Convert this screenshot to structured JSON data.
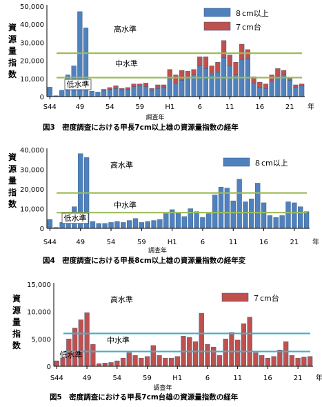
{
  "charts": [
    {
      "type": "bar",
      "stacked": true,
      "ylabel": "資源量指数",
      "xlabel": "調査年",
      "x_unit": "年",
      "caption": "図3　密度調査における甲長7cm以上雄の資源量指数の経年",
      "y_ticks": [
        "0",
        "10,000",
        "20,000",
        "30,000",
        "40,000",
        "50,000"
      ],
      "ylim": [
        0,
        50000
      ],
      "x_ticks": [
        "S44",
        "49",
        "54",
        "59",
        "H1",
        "6",
        "11",
        "16",
        "21"
      ],
      "x_tick_index": [
        0,
        5,
        10,
        15,
        20,
        25,
        30,
        35,
        40
      ],
      "series": [
        {
          "name": "８cm以上",
          "color": "#4f81bd",
          "values": [
            5200,
            500,
            3500,
            12000,
            17000,
            47000,
            38000,
            3000,
            2500,
            3500,
            4000,
            4500,
            3500,
            4000,
            5500,
            6000,
            5500,
            3500,
            4500,
            5000,
            10000,
            7500,
            9000,
            10500,
            12000,
            17000,
            15500,
            12500,
            13500,
            21500,
            17000,
            12000,
            20500,
            21000,
            7500,
            5000,
            4500,
            8500,
            11000,
            12000,
            9000,
            5000,
            6000
          ]
        },
        {
          "name": "７cm台",
          "color": "#c0504d",
          "values": [
            0,
            0,
            0,
            0,
            0,
            0,
            0,
            0,
            0,
            500,
            1000,
            1500,
            1000,
            1000,
            1500,
            1000,
            2000,
            1000,
            2000,
            1500,
            5000,
            4500,
            5500,
            3500,
            3000,
            5000,
            6500,
            4500,
            5500,
            9500,
            6000,
            7000,
            8500,
            5000,
            3500,
            3000,
            2500,
            3500,
            4500,
            2500,
            1000,
            1500,
            1000
          ]
        }
      ],
      "bands": {
        "high_label": "高水準",
        "mid_label": "中水準",
        "low_label": "低水準",
        "high": 24000,
        "mid": 10500
      }
    },
    {
      "type": "bar",
      "ylabel": "資源量指数",
      "xlabel": "調査年",
      "x_unit": "年",
      "caption": "図4　密度調査における甲長8cm以上雄の資源量指数の経年変",
      "y_ticks": [
        "0",
        "10,000",
        "20,000",
        "30,000",
        "40,000"
      ],
      "ylim": [
        0,
        40000
      ],
      "x_ticks": [
        "S44",
        "49",
        "54",
        "59",
        "H1",
        "6",
        "11",
        "16",
        "21"
      ],
      "x_tick_index": [
        0,
        5,
        10,
        15,
        20,
        25,
        30,
        35,
        40
      ],
      "series": [
        {
          "name": "８cm以上",
          "color": "#4f81bd",
          "values": [
            4500,
            500,
            3000,
            8000,
            11000,
            38000,
            36000,
            3500,
            2500,
            2500,
            3000,
            3500,
            3000,
            4000,
            5000,
            3000,
            3500,
            4000,
            4500,
            7500,
            9500,
            8000,
            6000,
            10000,
            8500,
            5500,
            7500,
            17000,
            21000,
            20500,
            14000,
            25000,
            13500,
            15000,
            23000,
            13000,
            6500,
            5500,
            6500,
            13500,
            13000,
            11000,
            8500
          ]
        }
      ],
      "bands": {
        "high_label": "高水準",
        "mid_label": "中水準",
        "low_label": "低水準",
        "high": 18000,
        "mid": 8000
      }
    },
    {
      "type": "bar",
      "ylabel": "資源量指数",
      "xlabel": "調査年",
      "x_unit": "年",
      "caption": "図5　密度調査における甲長7cm台雄の資源量指数の経年",
      "y_ticks": [
        "0",
        "5,000",
        "10,000",
        "15,000"
      ],
      "ylim": [
        0,
        15000
      ],
      "x_ticks": [
        "S44",
        "49",
        "54",
        "59",
        "H1",
        "6",
        "11",
        "16",
        "21"
      ],
      "x_tick_index": [
        0,
        5,
        10,
        15,
        20,
        25,
        30,
        35,
        40
      ],
      "series": [
        {
          "name": "７cm台",
          "color": "#c0504d",
          "values": [
            1000,
            1500,
            5000,
            7000,
            8500,
            9800,
            4000,
            500,
            600,
            700,
            1000,
            1500,
            2500,
            2000,
            1500,
            1800,
            3800,
            2000,
            1500,
            1500,
            1800,
            5500,
            5300,
            4500,
            9700,
            4000,
            3500,
            2000,
            5000,
            6200,
            4800,
            7800,
            9000,
            2500,
            2000,
            1500,
            1800,
            3000,
            4500,
            2000,
            1500,
            1700,
            1800
          ]
        }
      ],
      "bands": {
        "high_label": "高水準",
        "mid_label": "中水準",
        "low_label": "低水準",
        "high": 6000,
        "mid": 2700
      }
    }
  ]
}
